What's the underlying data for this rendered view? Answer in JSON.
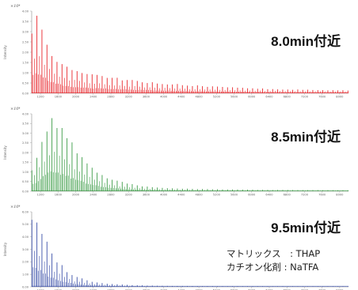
{
  "panels": [
    {
      "title": "8.0min付近",
      "color": "#e8242a",
      "exponent_label": "×10⁴",
      "ylabel": "Intensity",
      "yticks": [
        "4.00",
        "3.50",
        "3.00",
        "2.50",
        "2.00",
        "1.50",
        "1.00",
        "0.50",
        "0.00"
      ],
      "xticks": [
        "1200",
        "1600",
        "2000",
        "2400",
        "2800",
        "3200",
        "3600",
        "4000",
        "4400",
        "4800",
        "5200",
        "5600",
        "6000",
        "6400",
        "6800",
        "7200",
        "7600",
        "8000"
      ]
    },
    {
      "title": "8.5min付近",
      "color": "#3a9b45",
      "exponent_label": "×10⁴",
      "ylabel": "Intensity",
      "yticks": [
        "4.00",
        "3.50",
        "3.00",
        "2.50",
        "2.00",
        "1.50",
        "1.00",
        "0.50",
        "0.00"
      ],
      "xticks": [
        "1200",
        "1600",
        "2000",
        "2400",
        "2800",
        "3200",
        "3600",
        "4000",
        "4400",
        "4800",
        "5200",
        "5600",
        "6000",
        "6400",
        "6800",
        "7200",
        "7600",
        "8000"
      ]
    },
    {
      "title": "9.5min付近",
      "color": "#3a4fa8",
      "exponent_label": "×10⁴",
      "ylabel": "Intensity",
      "yticks": [
        "6.00",
        "5.00",
        "4.00",
        "3.00",
        "2.00",
        "1.00",
        "0.00"
      ],
      "xticks": [
        "1200",
        "1600",
        "2000",
        "2400",
        "2800",
        "3200",
        "3600",
        "4000",
        "4400",
        "4800",
        "5200",
        "5600",
        "6000",
        "6400",
        "6800",
        "7200",
        "7600",
        "8000"
      ]
    }
  ],
  "conditions": {
    "matrix": "マトリックス　: THAP",
    "cation": "カチオン化剤 : NaTFA"
  },
  "chart_data": [
    {
      "type": "line",
      "title": "8.0min付近",
      "xlabel": "",
      "ylabel": "Intensity",
      "xlim": [
        1000,
        8200
      ],
      "ylim": [
        0,
        4.0
      ],
      "exponent_label": "×10⁴",
      "peak_spacing": 114,
      "envelope": {
        "x": [
          1000,
          1100,
          1200,
          1300,
          1450,
          1600,
          1800,
          2000,
          2400,
          2800,
          3200,
          3600,
          4000,
          4800,
          5600,
          6400,
          7200,
          8200
        ],
        "y": [
          2.9,
          3.9,
          3.5,
          2.8,
          2.1,
          1.7,
          1.35,
          1.15,
          0.95,
          0.8,
          0.68,
          0.58,
          0.5,
          0.38,
          0.29,
          0.22,
          0.18,
          0.15
        ]
      },
      "series": [
        {
          "values": []
        }
      ]
    },
    {
      "type": "line",
      "title": "8.5min付近",
      "xlabel": "",
      "ylabel": "Intensity",
      "xlim": [
        1000,
        8200
      ],
      "ylim": [
        0,
        4.0
      ],
      "exponent_label": "×10⁴",
      "peak_spacing": 114,
      "envelope": {
        "x": [
          1000,
          1100,
          1200,
          1300,
          1400,
          1500,
          1600,
          1700,
          1800,
          2000,
          2200,
          2400,
          2600,
          2800,
          3200,
          3600,
          4000,
          4800,
          5600,
          6400,
          8200
        ],
        "y": [
          1.2,
          1.8,
          2.5,
          3.2,
          3.8,
          3.9,
          3.7,
          3.4,
          3.0,
          2.3,
          1.7,
          1.25,
          0.9,
          0.65,
          0.4,
          0.26,
          0.18,
          0.12,
          0.09,
          0.07,
          0.05
        ]
      },
      "series": [
        {
          "values": []
        }
      ]
    },
    {
      "type": "line",
      "title": "9.5min付近",
      "xlabel": "",
      "ylabel": "Intensity",
      "xlim": [
        1000,
        8200
      ],
      "ylim": [
        0,
        6.0
      ],
      "exponent_label": "×10⁴",
      "peak_spacing": 114,
      "envelope": {
        "x": [
          1000,
          1100,
          1200,
          1300,
          1400,
          1500,
          1600,
          1800,
          2000,
          2400,
          2800,
          3200,
          3600,
          4000,
          4800,
          5600,
          8200
        ],
        "y": [
          5.9,
          5.6,
          4.9,
          4.0,
          3.2,
          2.6,
          2.1,
          1.35,
          0.85,
          0.42,
          0.25,
          0.16,
          0.11,
          0.08,
          0.06,
          0.05,
          0.04
        ]
      },
      "series": [
        {
          "values": []
        }
      ]
    }
  ]
}
